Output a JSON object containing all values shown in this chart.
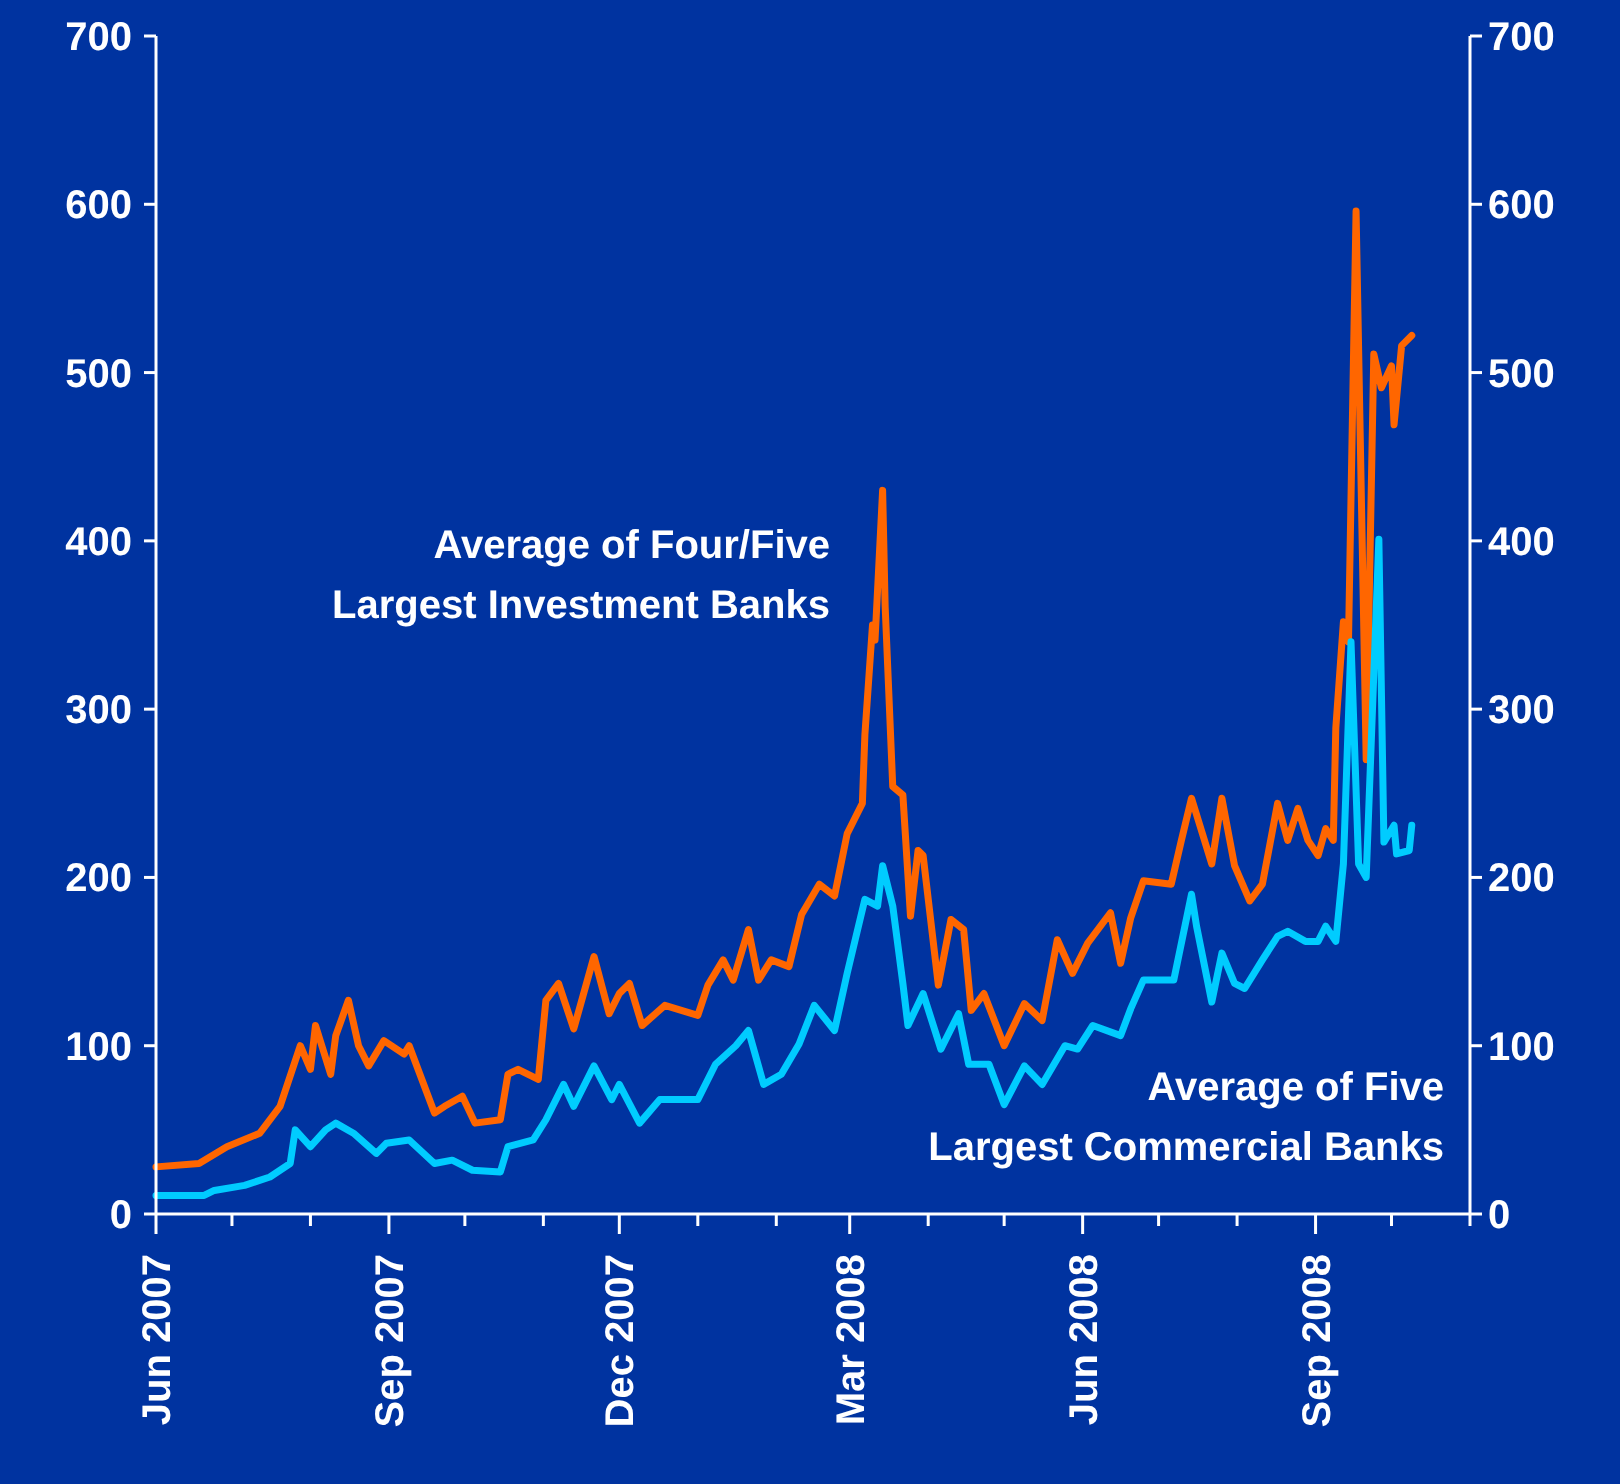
{
  "chart_data": {
    "type": "line",
    "xlim": [
      "2007-06-01",
      "2008-11-01"
    ],
    "xticks": [
      {
        "value": "2007-06-01",
        "label": "Jun 2007"
      },
      {
        "value": "2007-07-01",
        "label": null
      },
      {
        "value": "2007-08-01",
        "label": null
      },
      {
        "value": "2007-09-01",
        "label": "Sep 2007"
      },
      {
        "value": "2007-10-01",
        "label": null
      },
      {
        "value": "2007-11-01",
        "label": null
      },
      {
        "value": "2007-12-01",
        "label": "Dec 2007"
      },
      {
        "value": "2008-01-01",
        "label": null
      },
      {
        "value": "2008-02-01",
        "label": null
      },
      {
        "value": "2008-03-01",
        "label": "Mar 2008"
      },
      {
        "value": "2008-04-01",
        "label": null
      },
      {
        "value": "2008-05-01",
        "label": null
      },
      {
        "value": "2008-06-01",
        "label": "Jun 2008"
      },
      {
        "value": "2008-07-01",
        "label": null
      },
      {
        "value": "2008-08-01",
        "label": null
      },
      {
        "value": "2008-09-01",
        "label": "Sep 2008"
      },
      {
        "value": "2008-10-01",
        "label": null
      },
      {
        "value": "2008-11-01",
        "label": null
      }
    ],
    "ylim": [
      0,
      700
    ],
    "yticks": [
      0,
      100,
      200,
      300,
      400,
      500,
      600,
      700
    ],
    "y2lim": [
      0,
      700
    ],
    "y2ticks": [
      0,
      100,
      200,
      300,
      400,
      500,
      600,
      700
    ],
    "grid": false,
    "legend": false,
    "marker": "none",
    "line_style": "solid",
    "series": [
      {
        "name": "Average of Four/Five\nLargest Investment Banks",
        "color": "#ff6600",
        "x": [
          "2007-06-01",
          "2007-06-18",
          "2007-06-29",
          "2007-07-12",
          "2007-07-20",
          "2007-07-28",
          "2007-08-01",
          "2007-08-03",
          "2007-08-09",
          "2007-08-11",
          "2007-08-16",
          "2007-08-20",
          "2007-08-24",
          "2007-08-30",
          "2007-09-07",
          "2007-09-09",
          "2007-09-19",
          "2007-09-23",
          "2007-09-30",
          "2007-10-05",
          "2007-10-15",
          "2007-10-18",
          "2007-10-22",
          "2007-10-30",
          "2007-11-02",
          "2007-11-07",
          "2007-11-13",
          "2007-11-21",
          "2007-11-27",
          "2007-12-01",
          "2007-12-05",
          "2007-12-10",
          "2007-12-19",
          "2008-01-01",
          "2008-01-05",
          "2008-01-11",
          "2008-01-15",
          "2008-01-21",
          "2008-01-25",
          "2008-01-30",
          "2008-02-06",
          "2008-02-11",
          "2008-02-18",
          "2008-02-24",
          "2008-02-29",
          "2008-03-06",
          "2008-03-07",
          "2008-03-10",
          "2008-03-11",
          "2008-03-14",
          "2008-03-15",
          "2008-03-18",
          "2008-03-22",
          "2008-03-25",
          "2008-03-28",
          "2008-03-30",
          "2008-04-05",
          "2008-04-10",
          "2008-04-15",
          "2008-04-18",
          "2008-04-23",
          "2008-05-01",
          "2008-05-09",
          "2008-05-16",
          "2008-05-22",
          "2008-05-28",
          "2008-06-03",
          "2008-06-12",
          "2008-06-16",
          "2008-06-20",
          "2008-06-25",
          "2008-07-06",
          "2008-07-10",
          "2008-07-14",
          "2008-07-22",
          "2008-07-26",
          "2008-07-31",
          "2008-08-06",
          "2008-08-11",
          "2008-08-17",
          "2008-08-21",
          "2008-08-25",
          "2008-08-29",
          "2008-09-02",
          "2008-09-05",
          "2008-09-08",
          "2008-09-09",
          "2008-09-12",
          "2008-09-14",
          "2008-09-17",
          "2008-09-21",
          "2008-09-24",
          "2008-09-27",
          "2008-10-01",
          "2008-10-02",
          "2008-10-05",
          "2008-10-09"
        ],
        "values": [
          28,
          30,
          40,
          48,
          64,
          100,
          86,
          112,
          83,
          106,
          127,
          100,
          88,
          103,
          95,
          100,
          60,
          64,
          70,
          54,
          56,
          83,
          86,
          80,
          127,
          137,
          110,
          153,
          119,
          131,
          137,
          112,
          124,
          118,
          136,
          151,
          139,
          169,
          139,
          151,
          147,
          178,
          196,
          189,
          226,
          244,
          285,
          350,
          341,
          430,
          361,
          254,
          249,
          177,
          216,
          213,
          136,
          175,
          169,
          121,
          131,
          100,
          125,
          115,
          163,
          143,
          161,
          179,
          149,
          176,
          198,
          196,
          222,
          247,
          208,
          247,
          207,
          186,
          196,
          244,
          222,
          241,
          222,
          213,
          229,
          222,
          289,
          352,
          340,
          596,
          270,
          511,
          491,
          504,
          469,
          516,
          522
        ]
      },
      {
        "name": "Average of  Five\nLargest Commercial Banks",
        "color": "#00ccff",
        "x": [
          "2007-06-01",
          "2007-06-20",
          "2007-06-24",
          "2007-07-06",
          "2007-07-16",
          "2007-07-24",
          "2007-07-26",
          "2007-08-01",
          "2007-08-07",
          "2007-08-11",
          "2007-08-18",
          "2007-08-27",
          "2007-08-31",
          "2007-09-09",
          "2007-09-19",
          "2007-09-26",
          "2007-10-04",
          "2007-10-15",
          "2007-10-18",
          "2007-10-28",
          "2007-11-02",
          "2007-11-09",
          "2007-11-13",
          "2007-11-21",
          "2007-11-28",
          "2007-12-01",
          "2007-12-09",
          "2007-12-17",
          "2008-01-01",
          "2008-01-08",
          "2008-01-16",
          "2008-01-21",
          "2008-01-27",
          "2008-02-03",
          "2008-02-10",
          "2008-02-16",
          "2008-02-24",
          "2008-02-29",
          "2008-03-07",
          "2008-03-12",
          "2008-03-14",
          "2008-03-18",
          "2008-03-22",
          "2008-03-24",
          "2008-03-30",
          "2008-04-06",
          "2008-04-13",
          "2008-04-17",
          "2008-04-25",
          "2008-05-01",
          "2008-05-09",
          "2008-05-16",
          "2008-05-25",
          "2008-05-30",
          "2008-06-05",
          "2008-06-16",
          "2008-06-20",
          "2008-06-25",
          "2008-07-07",
          "2008-07-14",
          "2008-07-16",
          "2008-07-22",
          "2008-07-26",
          "2008-07-31",
          "2008-08-04",
          "2008-08-11",
          "2008-08-17",
          "2008-08-21",
          "2008-08-28",
          "2008-09-02",
          "2008-09-05",
          "2008-09-09",
          "2008-09-12",
          "2008-09-15",
          "2008-09-18",
          "2008-09-21",
          "2008-09-26",
          "2008-09-28",
          "2008-10-02",
          "2008-10-03",
          "2008-10-08",
          "2008-10-09"
        ],
        "values": [
          11,
          11,
          14,
          17,
          22,
          30,
          50,
          40,
          50,
          54,
          48,
          36,
          42,
          44,
          30,
          32,
          26,
          25,
          40,
          44,
          56,
          77,
          64,
          88,
          68,
          77,
          54,
          68,
          68,
          89,
          100,
          109,
          77,
          83,
          101,
          124,
          109,
          143,
          187,
          183,
          207,
          183,
          137,
          112,
          131,
          98,
          119,
          89,
          89,
          65,
          88,
          77,
          100,
          98,
          112,
          106,
          122,
          139,
          139,
          190,
          171,
          126,
          155,
          137,
          134,
          151,
          165,
          168,
          162,
          162,
          171,
          162,
          208,
          340,
          208,
          200,
          401,
          221,
          231,
          214,
          216,
          231
        ]
      }
    ]
  }
}
